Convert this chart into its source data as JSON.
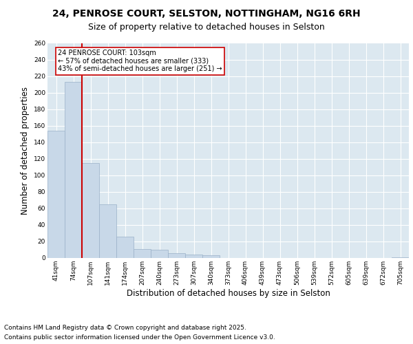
{
  "title_line1": "24, PENROSE COURT, SELSTON, NOTTINGHAM, NG16 6RH",
  "title_line2": "Size of property relative to detached houses in Selston",
  "xlabel": "Distribution of detached houses by size in Selston",
  "ylabel": "Number of detached properties",
  "categories": [
    "41sqm",
    "74sqm",
    "107sqm",
    "141sqm",
    "174sqm",
    "207sqm",
    "240sqm",
    "273sqm",
    "307sqm",
    "340sqm",
    "373sqm",
    "406sqm",
    "439sqm",
    "473sqm",
    "506sqm",
    "539sqm",
    "572sqm",
    "605sqm",
    "639sqm",
    "672sqm",
    "705sqm"
  ],
  "values": [
    154,
    213,
    115,
    65,
    26,
    11,
    10,
    6,
    4,
    3,
    0,
    0,
    0,
    0,
    0,
    0,
    0,
    0,
    0,
    0,
    1
  ],
  "bar_color": "#c8d8e8",
  "bar_edge_color": "#9ab0c8",
  "vline_x_index": 1.5,
  "vline_color": "#cc0000",
  "annotation_text": "24 PENROSE COURT: 103sqm\n← 57% of detached houses are smaller (333)\n43% of semi-detached houses are larger (251) →",
  "annotation_box_facecolor": "#ffffff",
  "annotation_box_edgecolor": "#cc0000",
  "ylim": [
    0,
    260
  ],
  "yticks": [
    0,
    20,
    40,
    60,
    80,
    100,
    120,
    140,
    160,
    180,
    200,
    220,
    240,
    260
  ],
  "background_color": "#ffffff",
  "plot_background_color": "#dce8f0",
  "grid_color": "#ffffff",
  "footer_line1": "Contains HM Land Registry data © Crown copyright and database right 2025.",
  "footer_line2": "Contains public sector information licensed under the Open Government Licence v3.0.",
  "title_fontsize": 10,
  "subtitle_fontsize": 9,
  "tick_fontsize": 6.5,
  "label_fontsize": 8.5,
  "footer_fontsize": 6.5,
  "ann_fontsize": 7
}
